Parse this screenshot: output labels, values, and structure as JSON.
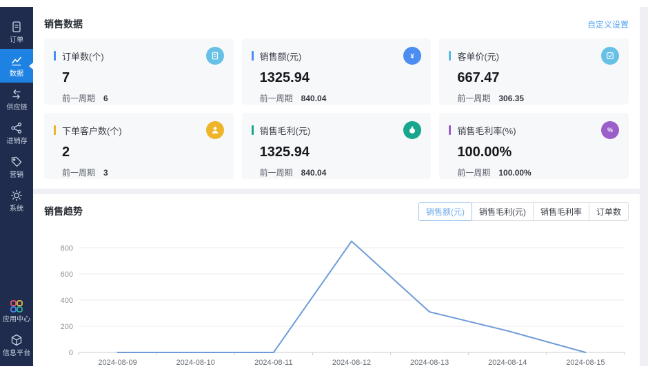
{
  "sidebar": {
    "items": [
      {
        "label": "订单",
        "icon": "order",
        "active": false
      },
      {
        "label": "数据",
        "icon": "data-chart",
        "active": true
      },
      {
        "label": "供应链",
        "icon": "supply-chain",
        "active": false
      },
      {
        "label": "进销存",
        "icon": "inventory-share",
        "active": false
      },
      {
        "label": "营销",
        "icon": "marketing-tag",
        "active": false
      },
      {
        "label": "系统",
        "icon": "system-gear",
        "active": false
      }
    ],
    "bottom_items": [
      {
        "label": "应用中心",
        "icon": "app-center",
        "active": false
      },
      {
        "label": "信息平台",
        "icon": "info-platform",
        "active": false
      }
    ]
  },
  "sales_panel": {
    "title": "销售数据",
    "settings_link": "自定义设置",
    "cards": [
      {
        "title": "订单数(个)",
        "value": "7",
        "prev_label": "前一周期",
        "prev_value": "6",
        "accent": "#4b8df1",
        "icon_bg": "#67c1e6",
        "icon": "document"
      },
      {
        "title": "销售额(元)",
        "value": "1325.94",
        "prev_label": "前一周期",
        "prev_value": "840.04",
        "accent": "#4b8df1",
        "icon_bg": "#4b8df1",
        "icon": "yen"
      },
      {
        "title": "客单价(元)",
        "value": "667.47",
        "prev_label": "前一周期",
        "prev_value": "306.35",
        "accent": "#5ab9e4",
        "icon_bg": "#67c1e6",
        "icon": "check-card"
      },
      {
        "title": "下单客户数(个)",
        "value": "2",
        "prev_label": "前一周期",
        "prev_value": "3",
        "accent": "#f0b429",
        "icon_bg": "#f0b429",
        "icon": "person"
      },
      {
        "title": "销售毛利(元)",
        "value": "1325.94",
        "prev_label": "前一周期",
        "prev_value": "840.04",
        "accent": "#17a68e",
        "icon_bg": "#17a68e",
        "icon": "money-bag"
      },
      {
        "title": "销售毛利率(%)",
        "value": "100.00%",
        "prev_label": "前一周期",
        "prev_value": "100.00%",
        "accent": "#9c5fc9",
        "icon_bg": "#9c5fc9",
        "icon": "percent"
      }
    ]
  },
  "trend_panel": {
    "title": "销售趋势",
    "tabs": [
      {
        "label": "销售额(元)",
        "active": true
      },
      {
        "label": "销售毛利(元)",
        "active": false
      },
      {
        "label": "销售毛利率",
        "active": false
      },
      {
        "label": "订单数",
        "active": false
      }
    ]
  },
  "chart_data": {
    "type": "line",
    "title": "销售趋势",
    "x": [
      "2024-08-09",
      "2024-08-10",
      "2024-08-11",
      "2024-08-12",
      "2024-08-13",
      "2024-08-14",
      "2024-08-15"
    ],
    "series": [
      {
        "name": "销售额(元)",
        "values": [
          0,
          0,
          0,
          850,
          310,
          165,
          0
        ]
      }
    ],
    "yticks": [
      0,
      200,
      400,
      600,
      800
    ],
    "ylim": [
      0,
      1000
    ],
    "xlabel": "",
    "ylabel": "",
    "grid": true,
    "legend_position": "none",
    "line_color": "#6e9bd8",
    "grid_color": "#ececec",
    "axis_color": "#cccccc",
    "tick_label_color": "#8c9096"
  }
}
